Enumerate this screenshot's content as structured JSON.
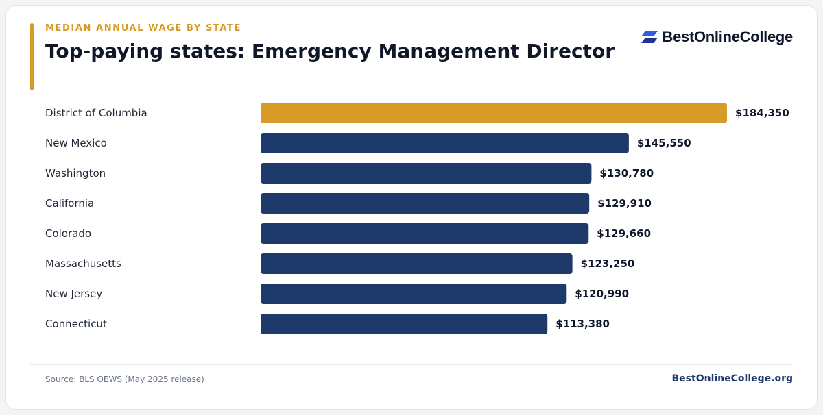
{
  "header": {
    "eyebrow": "MEDIAN ANNUAL WAGE BY STATE",
    "title": "Top-paying states: Emergency Management Director"
  },
  "logo": {
    "text": "BestOnlineCollege",
    "icon": "stacked-parallelogram-logo-icon",
    "colors": [
      "#2f5fe0",
      "#1f2f9c"
    ]
  },
  "footer": {
    "source": "Source: BLS OEWS (May 2025 release)",
    "site": "BestOnlineCollege.org"
  },
  "colors": {
    "highlight": "#d99a28",
    "bar": "#1e3a6b",
    "label": "#1f2937",
    "value": "#0f172a"
  },
  "chart_data": {
    "type": "bar",
    "orientation": "horizontal",
    "title": "Top-paying states: Emergency Management Director",
    "categories": [
      "District of Columbia",
      "New Mexico",
      "Washington",
      "California",
      "Colorado",
      "Massachusetts",
      "New Jersey",
      "Connecticut"
    ],
    "values": [
      184350,
      145550,
      130780,
      129910,
      129660,
      123250,
      120990,
      113380
    ],
    "value_labels": [
      "$184,350",
      "$145,550",
      "$130,780",
      "$129,910",
      "$129,660",
      "$123,250",
      "$120,990",
      "$113,380"
    ],
    "highlight_index": 0,
    "xlim": [
      0,
      184350
    ],
    "grid": false,
    "legend": "none"
  }
}
